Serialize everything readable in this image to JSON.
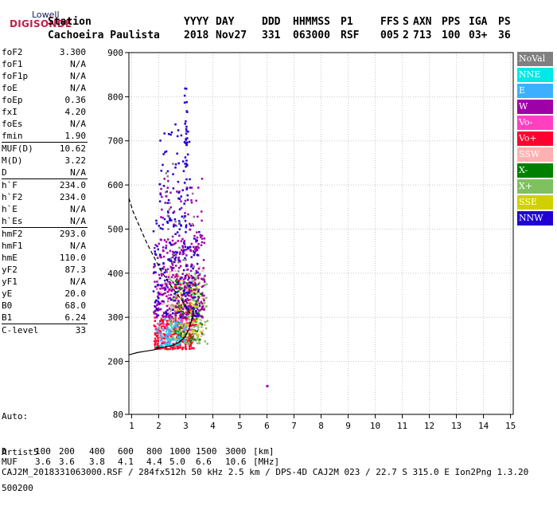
{
  "logo": {
    "line1": "Lowell",
    "line2": "DIGISONDE"
  },
  "header": {
    "columns": [
      {
        "label": "Station",
        "value": "Cachoeira Paulista"
      },
      {
        "label": "YYYY",
        "value": "2018"
      },
      {
        "label": "DAY",
        "value": "Nov27"
      },
      {
        "label": "DDD",
        "value": "331"
      },
      {
        "label": "HHMMSS",
        "value": "063000"
      },
      {
        "label": "P1",
        "value": "RSF"
      },
      {
        "label": "FFS",
        "value": "005"
      },
      {
        "label": "S",
        "value": "2"
      },
      {
        "label": "AXN",
        "value": "713"
      },
      {
        "label": "PPS",
        "value": "100"
      },
      {
        "label": "IGA",
        "value": "03+"
      },
      {
        "label": "PS",
        "value": "36"
      }
    ]
  },
  "parameters": [
    {
      "items": [
        {
          "name": "foF2",
          "value": "3.300"
        },
        {
          "name": "foF1",
          "value": "N/A"
        },
        {
          "name": "foF1p",
          "value": "N/A"
        },
        {
          "name": "foE",
          "value": "N/A"
        },
        {
          "name": "foEp",
          "value": "0.36"
        },
        {
          "name": "fxI",
          "value": "4.20"
        },
        {
          "name": "foEs",
          "value": "N/A"
        },
        {
          "name": "fmin",
          "value": "1.90"
        }
      ]
    },
    {
      "items": [
        {
          "name": "MUF(D)",
          "value": "10.62"
        },
        {
          "name": "M(D)",
          "value": "3.22"
        },
        {
          "name": "D",
          "value": "N/A"
        }
      ]
    },
    {
      "items": [
        {
          "name": "h`F",
          "value": "234.0"
        },
        {
          "name": "h`F2",
          "value": "234.0"
        },
        {
          "name": "h`E",
          "value": "N/A"
        },
        {
          "name": "h`Es",
          "value": "N/A"
        }
      ]
    },
    {
      "items": [
        {
          "name": "hmF2",
          "value": "293.0"
        },
        {
          "name": "hmF1",
          "value": "N/A"
        },
        {
          "name": "hmE",
          "value": "110.0"
        },
        {
          "name": "yF2",
          "value": "87.3"
        },
        {
          "name": "yF1",
          "value": "N/A"
        },
        {
          "name": "yE",
          "value": "20.0"
        },
        {
          "name": "B0",
          "value": "68.0"
        },
        {
          "name": "B1",
          "value": "6.24"
        }
      ]
    },
    {
      "items": [
        {
          "name": "C-level",
          "value": "33"
        }
      ]
    }
  ],
  "autoscaling": [
    "Auto:",
    "Artist5",
    "500200"
  ],
  "legend": [
    {
      "label": "NoVal",
      "color": "#808080"
    },
    {
      "label": "NNE",
      "color": "#00e8e8"
    },
    {
      "label": "E",
      "color": "#3cb0ff"
    },
    {
      "label": "W",
      "color": "#a000a8"
    },
    {
      "label": "Vo-",
      "color": "#ff40c0"
    },
    {
      "label": "Vo+",
      "color": "#ff0030"
    },
    {
      "label": "SSW",
      "color": "#ffb0b0"
    },
    {
      "label": "X-",
      "color": "#008000"
    },
    {
      "label": "X+",
      "color": "#80c060"
    },
    {
      "label": "SSE",
      "color": "#d0d000"
    },
    {
      "label": "NNW",
      "color": "#2000d0"
    }
  ],
  "footer": {
    "row1_label": "D",
    "row1_values": [
      "100",
      "200",
      "400",
      "600",
      "800",
      "1000",
      "1500",
      "3000"
    ],
    "row1_unit": "[km]",
    "row2_label": "MUF",
    "row2_values": [
      "3.6",
      "3.6",
      "3.8",
      "4.1",
      "4.4",
      "5.0",
      "6.6",
      "10.6"
    ],
    "row2_unit": "[MHz]",
    "info": "CAJ2M_2018331063000.RSF / 284fx512h 50 kHz 2.5 km / DPS-4D CAJ2M 023 / 22.7 S 315.0 E Ion2Png 1.3.20"
  },
  "chart_data": {
    "type": "scatter",
    "title": "",
    "xlabel": "",
    "ylabel": "",
    "xlim": [
      0.9,
      15.1
    ],
    "ylim": [
      80,
      900
    ],
    "x_ticks": [
      1,
      2,
      3,
      4,
      5,
      6,
      7,
      8,
      9,
      10,
      11,
      12,
      13,
      14,
      15
    ],
    "y_ticks": [
      80,
      200,
      300,
      400,
      500,
      600,
      700,
      800,
      900
    ],
    "grid": true,
    "legend_placement": "right",
    "profile_curve": {
      "style": "solid",
      "color": "#000000",
      "x": [
        1.9,
        2.2,
        2.5,
        2.75,
        2.95,
        3.1,
        3.2,
        3.3
      ],
      "y": [
        231,
        232,
        236,
        243,
        254,
        270,
        290,
        310
      ]
    },
    "trace_curve": {
      "style": "dashed",
      "color": "#000000",
      "x": [
        0.9,
        1.05,
        1.3,
        1.55,
        1.8,
        2.05,
        2.35,
        2.65,
        2.9,
        3.05,
        3.2,
        3.3
      ],
      "y": [
        570,
        540,
        505,
        470,
        440,
        410,
        380,
        355,
        335,
        320,
        305,
        295
      ]
    },
    "lower_curve": {
      "style": "solid",
      "color": "#000000",
      "x": [
        0.9,
        1.2,
        1.5,
        1.8,
        2.0
      ],
      "y": [
        215,
        220,
        223,
        226,
        229
      ]
    },
    "clusters": [
      {
        "series": "Vo+",
        "x_range": [
          1.8,
          3.3
        ],
        "y_range": [
          228,
          300
        ],
        "count": 260
      },
      {
        "series": "Vo+",
        "x_range": [
          2.6,
          3.4
        ],
        "y_range": [
          280,
          400
        ],
        "count": 90
      },
      {
        "series": "Vo-",
        "x_range": [
          1.9,
          3.4
        ],
        "y_range": [
          235,
          380
        ],
        "count": 70
      },
      {
        "series": "SSW",
        "x_range": [
          2.0,
          3.7
        ],
        "y_range": [
          245,
          420
        ],
        "count": 130
      },
      {
        "series": "X+",
        "x_range": [
          2.4,
          3.8
        ],
        "y_range": [
          240,
          400
        ],
        "count": 140
      },
      {
        "series": "X-",
        "x_range": [
          2.6,
          3.6
        ],
        "y_range": [
          245,
          390
        ],
        "count": 90
      },
      {
        "series": "SSE",
        "x_range": [
          2.5,
          3.6
        ],
        "y_range": [
          250,
          380
        ],
        "count": 40
      },
      {
        "series": "NNE",
        "x_range": [
          1.9,
          2.8
        ],
        "y_range": [
          235,
          290
        ],
        "count": 40
      },
      {
        "series": "E",
        "x_range": [
          2.0,
          3.0
        ],
        "y_range": [
          235,
          300
        ],
        "count": 40
      },
      {
        "series": "W",
        "x_range": [
          1.8,
          3.7
        ],
        "y_range": [
          300,
          480
        ],
        "count": 260
      },
      {
        "series": "W",
        "x_range": [
          2.0,
          3.6
        ],
        "y_range": [
          450,
          620
        ],
        "count": 70
      },
      {
        "series": "NNW",
        "x_range": [
          1.8,
          3.5
        ],
        "y_range": [
          300,
          520
        ],
        "count": 130
      },
      {
        "series": "NNW",
        "x_range": [
          2.0,
          3.2
        ],
        "y_range": [
          500,
          740
        ],
        "count": 75
      },
      {
        "series": "NNW",
        "x_range": [
          2.95,
          3.05
        ],
        "y_range": [
          640,
          825
        ],
        "count": 25
      },
      {
        "series": "NoVal",
        "x_range": [
          2.2,
          3.3
        ],
        "y_range": [
          400,
          650
        ],
        "count": 25
      }
    ],
    "isolated_points": [
      {
        "series": "W",
        "x": 6.0,
        "y": 145
      }
    ]
  }
}
